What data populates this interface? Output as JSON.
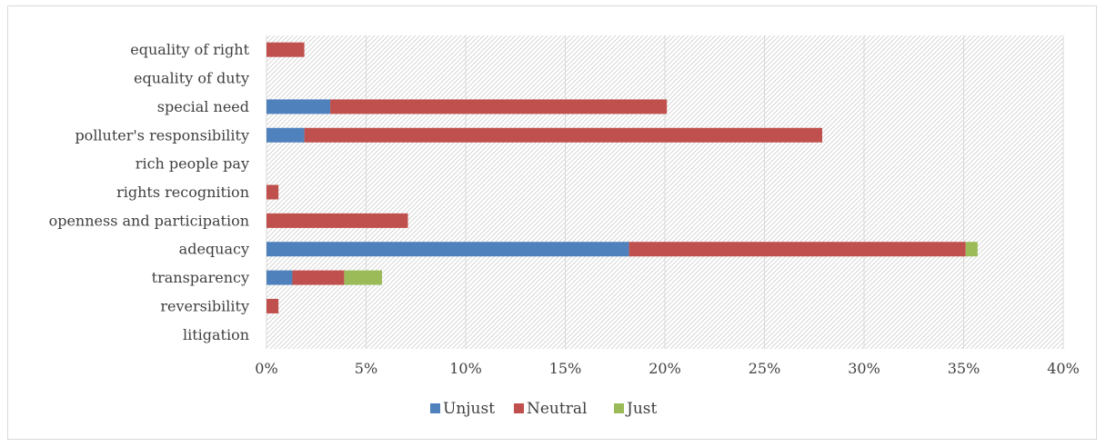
{
  "chart_data": {
    "type": "bar",
    "orientation": "horizontal",
    "stacked": true,
    "title": "",
    "xlabel": "",
    "ylabel": "",
    "xlim": [
      0,
      40
    ],
    "x_ticks": [
      0,
      5,
      10,
      15,
      20,
      25,
      30,
      35,
      40
    ],
    "x_tick_format": "percent",
    "grid": "vertical",
    "plot_background": "diagonal-hatch",
    "legend_position": "bottom",
    "categories": [
      "equality of right",
      "equality of duty",
      "special need",
      "polluter's responsibility",
      "rich people pay",
      "rights recognition",
      "openness and participation",
      "adequacy",
      "transparency",
      "reversibility",
      "litigation"
    ],
    "series": [
      {
        "name": "Unjust",
        "color": "#4f81bd",
        "values": [
          0,
          0,
          3.2,
          1.9,
          0,
          0,
          0,
          18.2,
          1.3,
          0,
          0
        ]
      },
      {
        "name": "Neutral",
        "color": "#c0504d",
        "values": [
          1.9,
          0,
          16.9,
          26.0,
          0,
          0.6,
          7.1,
          16.9,
          2.6,
          0.6,
          0
        ]
      },
      {
        "name": "Just",
        "color": "#9bbb59",
        "values": [
          0,
          0,
          0,
          0,
          0,
          0,
          0,
          0.6,
          1.9,
          0,
          0
        ]
      }
    ]
  }
}
